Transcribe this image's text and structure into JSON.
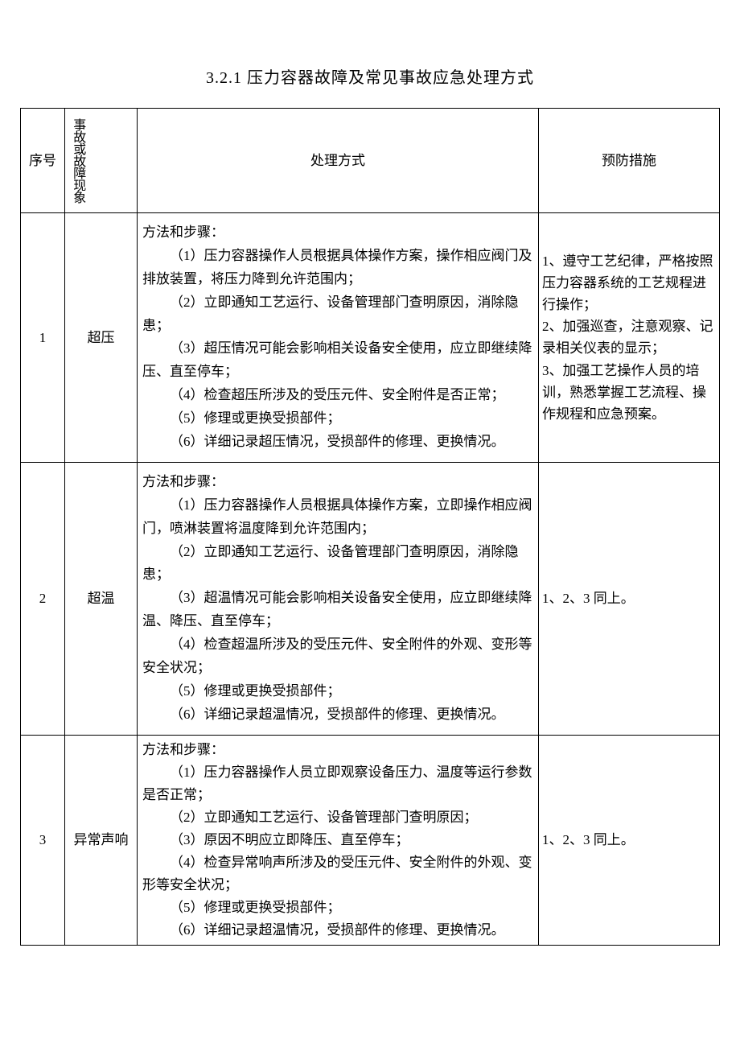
{
  "title": "3.2.1 压力容器故障及常见事故应急处理方式",
  "headers": {
    "num": "序号",
    "phenom": "事故或故障现象",
    "method": "处理方式",
    "prevent": "预防措施"
  },
  "rows": [
    {
      "num": "1",
      "phenom": "超压",
      "method_intro": "方法和步骤：",
      "method_items": [
        "（1）压力容器操作人员根据具体操作方案，操作相应阀门及排放装置，将压力降到允许范围内；",
        "（2）立即通知工艺运行、设备管理部门查明原因，消除隐患；",
        "（3）超压情况可能会影响相关设备安全使用，应立即继续降压、直至停车；",
        "（4）检查超压所涉及的受压元件、安全附件是否正常；",
        "（5）修理或更换受损部件；",
        "（6）详细记录超压情况，受损部件的修理、更换情况。"
      ],
      "prevent": "1、遵守工艺纪律，严格按照压力容器系统的工艺规程进行操作；\n2、加强巡查，注意观察、记录相关仪表的显示；\n3、加强工艺操作人员的培训，熟悉掌握工艺流程、操作规程和应急预案。"
    },
    {
      "num": "2",
      "phenom": "超温",
      "method_intro": "方法和步骤：",
      "method_items": [
        "（1）压力容器操作人员根据具体操作方案，立即操作相应阀门，喷淋装置将温度降到允许范围内；",
        "（2）立即通知工艺运行、设备管理部门查明原因，消除隐患；",
        "（3）超温情况可能会影响相关设备安全使用，应立即继续降温、降压、直至停车；",
        "（4）检查超温所涉及的受压元件、安全附件的外观、变形等安全状况；",
        "（5）修理或更换受损部件；",
        "（6）详细记录超温情况，受损部件的修理、更换情况。"
      ],
      "prevent": "1、2、3 同上。"
    },
    {
      "num": "3",
      "phenom": "异常声响",
      "method_intro": "方法和步骤：",
      "method_items": [
        "（1）压力容器操作人员立即观察设备压力、温度等运行参数是否正常；",
        "（2）立即通知工艺运行、设备管理部门查明原因；",
        "（3）原因不明应立即降压、直至停车；",
        "（4）检查异常响声所涉及的受压元件、安全附件的外观、变形等安全状况；",
        "（5）修理或更换受损部件；",
        "（6）详细记录超温情况，受损部件的修理、更换情况。"
      ],
      "prevent": "1、2、3 同上。"
    }
  ],
  "styling": {
    "background_color": "#ffffff",
    "text_color": "#000000",
    "border_color": "#000000",
    "font_family": "SimSun",
    "title_fontsize": 20,
    "body_fontsize": 17,
    "column_widths": {
      "num": 55,
      "phenom": 90,
      "method": "auto",
      "prevent": 225
    }
  }
}
